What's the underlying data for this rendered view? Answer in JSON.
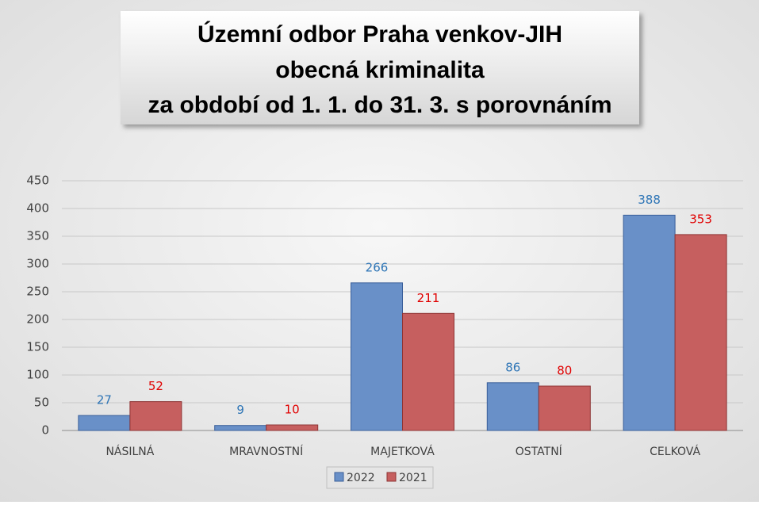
{
  "chart_data": {
    "type": "bar",
    "title": [
      "Územní odbor Praha venkov-JIH",
      "obecná kriminalita",
      "za období od 1. 1. do 31. 3. s porovnáním"
    ],
    "categories": [
      "NÁSILNÁ",
      "MRAVNOSTNÍ",
      "MAJETKOVÁ",
      "OSTATNÍ",
      "CELKOVÁ"
    ],
    "series": [
      {
        "name": "2022",
        "color": "#6990c8",
        "stroke": "#3a5f9a",
        "label_color": "#2e75b6",
        "values": [
          27,
          9,
          266,
          86,
          388
        ]
      },
      {
        "name": "2021",
        "color": "#c65f5f",
        "stroke": "#8e3434",
        "label_color": "#e00000",
        "values": [
          52,
          10,
          211,
          80,
          353
        ]
      }
    ],
    "ylim": [
      0,
      450
    ],
    "yticks": [
      0,
      50,
      100,
      150,
      200,
      250,
      300,
      350,
      400,
      450
    ],
    "grid": true,
    "legend": "bottom"
  }
}
